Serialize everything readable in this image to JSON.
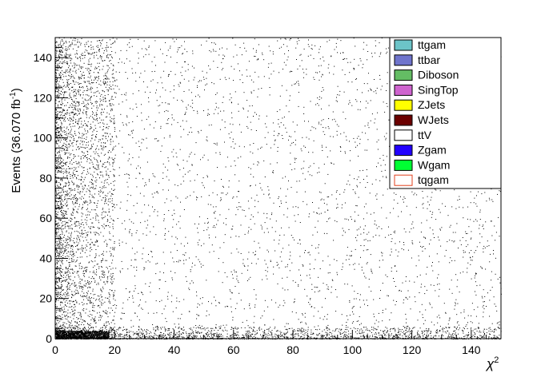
{
  "chart_data": {
    "type": "scatter",
    "title": "",
    "xlabel": "χ",
    "xlabel_sup": "2",
    "ylabel_main": "Events (36.070 fb",
    "ylabel_sup": "-1",
    "ylabel_close": ")",
    "xlim": [
      0,
      150
    ],
    "ylim": [
      0,
      150
    ],
    "x_ticks": [
      0,
      20,
      40,
      60,
      80,
      100,
      120,
      140
    ],
    "y_ticks": [
      0,
      20,
      40,
      60,
      80,
      100,
      120,
      140
    ],
    "grid": false,
    "legend_position": "top-right",
    "legend": [
      {
        "name": "ttgam",
        "color": "#6cc4c8",
        "border": "#000000"
      },
      {
        "name": "ttbar",
        "color": "#6f74cc",
        "border": "#000000"
      },
      {
        "name": "Diboson",
        "color": "#64bd64",
        "border": "#000000"
      },
      {
        "name": "SingTop",
        "color": "#cf64cf",
        "border": "#000000"
      },
      {
        "name": "ZJets",
        "color": "#ffff00",
        "border": "#000000"
      },
      {
        "name": "WJets",
        "color": "#6b0000",
        "border": "#000000"
      },
      {
        "name": "ttV",
        "color": "#ffffff",
        "border": "#000000"
      },
      {
        "name": "Zgam",
        "color": "#2200ff",
        "border": "#000000"
      },
      {
        "name": "Wgam",
        "color": "#00ff33",
        "border": "#000000"
      },
      {
        "name": "tqgam",
        "color": "#ffffff",
        "border": "#e0401c"
      }
    ],
    "point_density": {
      "description_free": true,
      "regions": [
        {
          "x": [
            0,
            150
          ],
          "y": [
            0,
            150
          ],
          "weight": 0.35
        },
        {
          "x": [
            0,
            20
          ],
          "y": [
            0,
            150
          ],
          "weight": 0.3
        },
        {
          "x": [
            0,
            150
          ],
          "y": [
            0,
            6
          ],
          "weight": 0.2
        },
        {
          "x": [
            0,
            18
          ],
          "y": [
            0,
            4
          ],
          "weight": 0.15
        }
      ]
    }
  }
}
